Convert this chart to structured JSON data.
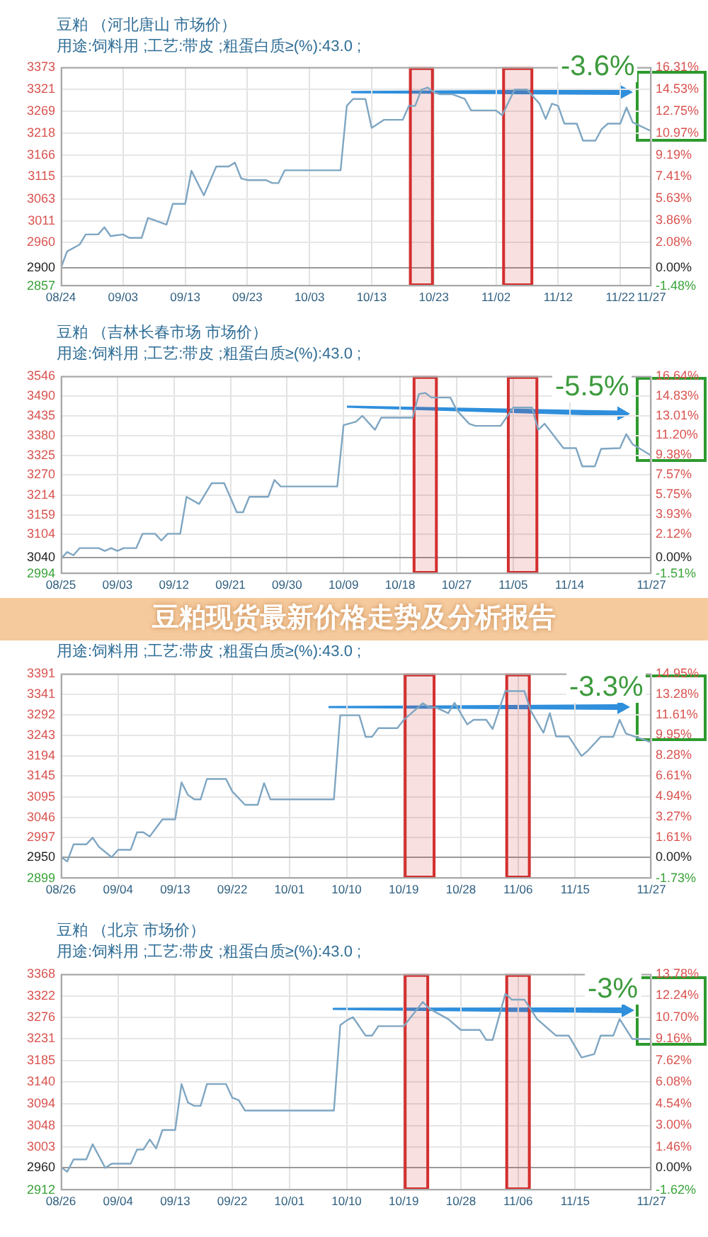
{
  "chart_data": [
    {
      "type": "line",
      "title": "豆粕 （河北唐山 市场价）",
      "subtitle": "用途:饲料用 ;工艺:带皮 ;粗蛋白质≥(%):43.0 ;",
      "color": "#7fa6c2",
      "grid": true,
      "annotations": [
        "-3.6%"
      ],
      "bands": [
        {
          "axis": "x",
          "from": "--10-19",
          "to": "--10-23",
          "color": "#d32f2f"
        },
        {
          "axis": "x",
          "from": "--11-03",
          "to": "--11-08",
          "color": "#d32f2f"
        }
      ],
      "x": [
        "--08-24",
        "--08-25",
        "--08-27",
        "--08-28",
        "--08-30",
        "--08-31",
        "--09-01",
        "--09-03",
        "--09-04",
        "--09-06",
        "--09-07",
        "--09-08",
        "--09-10",
        "--09-11",
        "--09-13",
        "--09-14",
        "--09-16",
        "--09-18",
        "--09-20",
        "--09-21",
        "--09-22",
        "--09-23",
        "--09-26",
        "--09-27",
        "--09-28",
        "--09-29",
        "--10-08",
        "--10-09",
        "--10-10",
        "--10-12",
        "--10-13",
        "--10-15",
        "--10-18",
        "--10-19",
        "--10-20",
        "--10-21",
        "--10-22",
        "--10-23",
        "--10-24",
        "--10-26",
        "--10-28",
        "--10-29",
        "--11-02",
        "--11-03",
        "--11-05",
        "--11-07",
        "--11-09",
        "--11-10",
        "--11-11",
        "--11-12",
        "--11-13",
        "--11-15",
        "--11-16",
        "--11-18",
        "--11-19",
        "--11-20",
        "--11-22",
        "--11-23",
        "--11-24",
        "--11-27"
      ],
      "values": [
        2900,
        2939,
        2955,
        2979,
        2979,
        2996,
        2975,
        2979,
        2971,
        2971,
        3018,
        3013,
        3002,
        3051,
        3051,
        3129,
        3071,
        3139,
        3139,
        3148,
        3111,
        3107,
        3107,
        3100,
        3100,
        3130,
        3130,
        3282,
        3298,
        3298,
        3230,
        3249,
        3249,
        3282,
        3282,
        3320,
        3325,
        3314,
        3309,
        3309,
        3298,
        3271,
        3271,
        3260,
        3320,
        3320,
        3287,
        3251,
        3287,
        3282,
        3240,
        3240,
        3200,
        3200,
        3227,
        3240,
        3240,
        3278,
        3243,
        3222
      ],
      "xlim": [
        "--08-24",
        "--11-27"
      ],
      "xticks": [
        {
          "value": "--08-24",
          "label": "08/24"
        },
        {
          "value": "--09-03",
          "label": "09/03"
        },
        {
          "value": "--09-13",
          "label": "09/13"
        },
        {
          "value": "--09-23",
          "label": "09/23"
        },
        {
          "value": "--10-03",
          "label": "10/03"
        },
        {
          "value": "--10-13",
          "label": "10/13"
        },
        {
          "value": "--10-23",
          "label": "10/23"
        },
        {
          "value": "--11-02",
          "label": "11/02"
        },
        {
          "value": "--11-12",
          "label": "11/12"
        },
        {
          "value": "--11-22",
          "label": "11/22"
        },
        {
          "value": "--11-27",
          "label": "11/27"
        }
      ],
      "ylim": [
        2857,
        3373
      ],
      "yticks": [
        2857,
        2900,
        2960,
        3011,
        3063,
        3115,
        3166,
        3218,
        3269,
        3321,
        3373
      ],
      "y2lim": [
        -1.48,
        16.31
      ],
      "y2ticks": [
        {
          "value": -1.48,
          "label": "-1.48%"
        },
        {
          "value": 0,
          "label": "0.00%"
        },
        {
          "value": 2.08,
          "label": "2.08%"
        },
        {
          "value": 3.86,
          "label": "3.86%"
        },
        {
          "value": 5.63,
          "label": "5.63%"
        },
        {
          "value": 7.41,
          "label": "7.41%"
        },
        {
          "value": 9.19,
          "label": "9.19%"
        },
        {
          "value": 10.97,
          "label": "10.97%"
        },
        {
          "value": 12.75,
          "label": "12.75%"
        },
        {
          "value": 14.53,
          "label": "14.53%"
        },
        {
          "value": 16.31,
          "label": "16.31%"
        }
      ]
    },
    {
      "type": "line",
      "title": "豆粕 （吉林长春市场 市场价）",
      "subtitle": "用途:饲料用 ;工艺:带皮 ;粗蛋白质≥(%):43.0 ;",
      "color": "#7fa6c2",
      "grid": true,
      "annotations": [
        "-5.5%"
      ],
      "bands": [
        {
          "axis": "x",
          "from": "--10-20",
          "to": "--10-24",
          "color": "#d32f2f"
        },
        {
          "axis": "x",
          "from": "--11-04",
          "to": "--11-09",
          "color": "#d32f2f"
        }
      ],
      "x": [
        "--08-25",
        "--08-26",
        "--08-27",
        "--08-28",
        "--08-31",
        "--09-01",
        "--09-02",
        "--09-03",
        "--09-04",
        "--09-06",
        "--09-07",
        "--09-09",
        "--09-10",
        "--09-11",
        "--09-13",
        "--09-14",
        "--09-16",
        "--09-18",
        "--09-20",
        "--09-22",
        "--09-23",
        "--09-24",
        "--09-27",
        "--09-28",
        "--09-29",
        "--10-08",
        "--10-09",
        "--10-11",
        "--10-12",
        "--10-14",
        "--10-15",
        "--10-20",
        "--10-21",
        "--10-22",
        "--10-23",
        "--10-26",
        "--10-27",
        "--10-29",
        "--10-30",
        "--11-03",
        "--11-05",
        "--11-08",
        "--11-09",
        "--11-10",
        "--11-13",
        "--11-15",
        "--11-16",
        "--11-18",
        "--11-19",
        "--11-22",
        "--11-23",
        "--11-24",
        "--11-27"
      ],
      "values": [
        3036,
        3055,
        3046,
        3066,
        3066,
        3058,
        3066,
        3058,
        3066,
        3066,
        3106,
        3106,
        3087,
        3106,
        3106,
        3209,
        3189,
        3247,
        3247,
        3166,
        3166,
        3209,
        3209,
        3256,
        3238,
        3238,
        3409,
        3419,
        3435,
        3396,
        3430,
        3430,
        3496,
        3499,
        3486,
        3486,
        3451,
        3413,
        3407,
        3407,
        3458,
        3458,
        3396,
        3413,
        3345,
        3345,
        3294,
        3294,
        3343,
        3345,
        3384,
        3356,
        3324
      ],
      "xlim": [
        "--08-25",
        "--11-27"
      ],
      "xticks": [
        {
          "value": "--08-25",
          "label": "08/25"
        },
        {
          "value": "--09-03",
          "label": "09/03"
        },
        {
          "value": "--09-12",
          "label": "09/12"
        },
        {
          "value": "--09-21",
          "label": "09/21"
        },
        {
          "value": "--09-30",
          "label": "09/30"
        },
        {
          "value": "--10-09",
          "label": "10/09"
        },
        {
          "value": "--10-18",
          "label": "10/18"
        },
        {
          "value": "--10-27",
          "label": "10/27"
        },
        {
          "value": "--11-05",
          "label": "11/05"
        },
        {
          "value": "--11-14",
          "label": "11/14"
        },
        {
          "value": "--11-27",
          "label": "11/27"
        }
      ],
      "ylim": [
        2994,
        3546
      ],
      "yticks": [
        2994,
        3040,
        3104,
        3159,
        3214,
        3270,
        3325,
        3380,
        3435,
        3490,
        3546
      ],
      "y2lim": [
        -1.51,
        16.64
      ],
      "y2ticks": [
        {
          "value": -1.51,
          "label": "-1.51%"
        },
        {
          "value": 0,
          "label": "0.00%"
        },
        {
          "value": 2.12,
          "label": "2.12%"
        },
        {
          "value": 3.93,
          "label": "3.93%"
        },
        {
          "value": 5.75,
          "label": "5.75%"
        },
        {
          "value": 7.57,
          "label": "7.57%"
        },
        {
          "value": 9.38,
          "label": "9.38%"
        },
        {
          "value": 11.2,
          "label": "11.20%"
        },
        {
          "value": 13.01,
          "label": "13.01%"
        },
        {
          "value": 14.83,
          "label": "14.83%"
        },
        {
          "value": 16.64,
          "label": "16.64%"
        }
      ]
    },
    {
      "type": "line",
      "title": "豆粕现货最新价格走势及分析报告",
      "subtitle": "用途:饲料用 ;工艺:带皮 ;粗蛋白质≥(%):43.0 ;",
      "color": "#7fa6c2",
      "grid": true,
      "annotations": [
        "-3.3%"
      ],
      "bands": [
        {
          "axis": "x",
          "from": "--10-19",
          "to": "--10-24",
          "color": "#d32f2f"
        },
        {
          "axis": "x",
          "from": "--11-04",
          "to": "--11-08",
          "color": "#d32f2f"
        }
      ],
      "x": [
        "--08-26",
        "--08-27",
        "--08-28",
        "--08-30",
        "--08-31",
        "--09-01",
        "--09-03",
        "--09-04",
        "--09-06",
        "--09-07",
        "--09-08",
        "--09-09",
        "--09-11",
        "--09-13",
        "--09-14",
        "--09-15",
        "--09-16",
        "--09-17",
        "--09-18",
        "--09-21",
        "--09-22",
        "--09-24",
        "--09-26",
        "--09-27",
        "--09-28",
        "--10-08",
        "--10-09",
        "--10-12",
        "--10-13",
        "--10-14",
        "--10-15",
        "--10-18",
        "--10-19",
        "--10-22",
        "--10-23",
        "--10-24",
        "--10-26",
        "--10-27",
        "--10-29",
        "--10-30",
        "--11-01",
        "--11-02",
        "--11-04",
        "--11-07",
        "--11-08",
        "--11-10",
        "--11-11",
        "--11-12",
        "--11-14",
        "--11-16",
        "--11-17",
        "--11-19",
        "--11-21",
        "--11-22",
        "--11-23",
        "--11-27"
      ],
      "values": [
        2951,
        2940,
        2981,
        2981,
        2997,
        2975,
        2950,
        2968,
        2968,
        3010,
        3010,
        3000,
        3041,
        3041,
        3130,
        3100,
        3089,
        3089,
        3138,
        3138,
        3108,
        3076,
        3076,
        3128,
        3089,
        3089,
        3291,
        3291,
        3239,
        3239,
        3260,
        3260,
        3280,
        3320,
        3310,
        3310,
        3296,
        3321,
        3269,
        3280,
        3280,
        3258,
        3349,
        3349,
        3302,
        3249,
        3296,
        3240,
        3240,
        3193,
        3206,
        3239,
        3239,
        3280,
        3247,
        3226
      ],
      "xlim": [
        "--08-26",
        "--11-27"
      ],
      "xticks": [
        {
          "value": "--08-26",
          "label": "08/26"
        },
        {
          "value": "--09-04",
          "label": "09/04"
        },
        {
          "value": "--09-13",
          "label": "09/13"
        },
        {
          "value": "--09-22",
          "label": "09/22"
        },
        {
          "value": "--10-01",
          "label": "10/01"
        },
        {
          "value": "--10-10",
          "label": "10/10"
        },
        {
          "value": "--10-19",
          "label": "10/19"
        },
        {
          "value": "--10-28",
          "label": "10/28"
        },
        {
          "value": "--11-06",
          "label": "11/06"
        },
        {
          "value": "--11-15",
          "label": "11/15"
        },
        {
          "value": "--11-27",
          "label": "11/27"
        }
      ],
      "ylim": [
        2899,
        3391
      ],
      "yticks": [
        2899,
        2950,
        2997,
        3046,
        3095,
        3145,
        3194,
        3243,
        3292,
        3341,
        3391
      ],
      "y2lim": [
        -1.73,
        14.95
      ],
      "y2ticks": [
        {
          "value": -1.73,
          "label": "-1.73%"
        },
        {
          "value": 0,
          "label": "0.00%"
        },
        {
          "value": 1.61,
          "label": "1.61%"
        },
        {
          "value": 3.27,
          "label": "3.27%"
        },
        {
          "value": 4.94,
          "label": "4.94%"
        },
        {
          "value": 6.61,
          "label": "6.61%"
        },
        {
          "value": 8.28,
          "label": "8.28%"
        },
        {
          "value": 9.95,
          "label": "9.95%"
        },
        {
          "value": 11.61,
          "label": "11.61%"
        },
        {
          "value": 13.28,
          "label": "13.28%"
        },
        {
          "value": 14.95,
          "label": "14.95%"
        }
      ]
    },
    {
      "type": "line",
      "title": "豆粕 （北京 市场价）",
      "subtitle": "用途:饲料用 ;工艺:带皮 ;粗蛋白质≥(%):43.0 ;",
      "color": "#7fa6c2",
      "grid": true,
      "annotations": [
        "-3%"
      ],
      "bands": [
        {
          "axis": "x",
          "from": "--10-19",
          "to": "--10-23",
          "color": "#d32f2f"
        },
        {
          "axis": "x",
          "from": "--11-04",
          "to": "--11-08",
          "color": "#d32f2f"
        }
      ],
      "x": [
        "--08-26",
        "--08-27",
        "--08-28",
        "--08-30",
        "--08-31",
        "--09-02",
        "--09-03",
        "--09-06",
        "--09-07",
        "--09-08",
        "--09-09",
        "--09-10",
        "--09-11",
        "--09-13",
        "--09-14",
        "--09-15",
        "--09-16",
        "--09-17",
        "--09-18",
        "--09-21",
        "--09-22",
        "--09-23",
        "--09-24",
        "--10-08",
        "--10-09",
        "--10-10",
        "--10-11",
        "--10-13",
        "--10-14",
        "--10-15",
        "--10-19",
        "--10-22",
        "--10-23",
        "--10-26",
        "--10-28",
        "--10-31",
        "--11-01",
        "--11-02",
        "--11-04",
        "--11-05",
        "--11-07",
        "--11-09",
        "--11-12",
        "--11-14",
        "--11-16",
        "--11-18",
        "--11-19",
        "--11-21",
        "--11-22",
        "--11-24",
        "--11-27"
      ],
      "values": [
        2961,
        2951,
        2977,
        2977,
        3009,
        2959,
        2968,
        2968,
        2998,
        2998,
        3019,
        3000,
        3039,
        3039,
        3136,
        3097,
        3090,
        3090,
        3136,
        3136,
        3107,
        3102,
        3080,
        3080,
        3260,
        3270,
        3277,
        3238,
        3238,
        3258,
        3258,
        3309,
        3295,
        3273,
        3250,
        3250,
        3229,
        3229,
        3326,
        3314,
        3314,
        3273,
        3238,
        3238,
        3192,
        3199,
        3238,
        3238,
        3273,
        3231,
        3231
      ],
      "xlim": [
        "--08-26",
        "--11-27"
      ],
      "xticks": [
        {
          "value": "--08-26",
          "label": "08/26"
        },
        {
          "value": "--09-04",
          "label": "09/04"
        },
        {
          "value": "--09-13",
          "label": "09/13"
        },
        {
          "value": "--09-22",
          "label": "09/22"
        },
        {
          "value": "--10-01",
          "label": "10/01"
        },
        {
          "value": "--10-10",
          "label": "10/10"
        },
        {
          "value": "--10-19",
          "label": "10/19"
        },
        {
          "value": "--10-28",
          "label": "10/28"
        },
        {
          "value": "--11-06",
          "label": "11/06"
        },
        {
          "value": "--11-15",
          "label": "11/15"
        },
        {
          "value": "--11-27",
          "label": "11/27"
        }
      ],
      "ylim": [
        2912,
        3368
      ],
      "yticks": [
        2912,
        2960,
        3003,
        3048,
        3094,
        3140,
        3185,
        3231,
        3276,
        3322,
        3368
      ],
      "y2lim": [
        -1.62,
        13.78
      ],
      "y2ticks": [
        {
          "value": -1.62,
          "label": "-1.62%"
        },
        {
          "value": 0,
          "label": "0.00%"
        },
        {
          "value": 1.46,
          "label": "1.46%"
        },
        {
          "value": 3,
          "label": "3.00%"
        },
        {
          "value": 4.54,
          "label": "4.54%"
        },
        {
          "value": 6.08,
          "label": "6.08%"
        },
        {
          "value": 7.62,
          "label": "7.62%"
        },
        {
          "value": 9.16,
          "label": "9.16%"
        },
        {
          "value": 10.7,
          "label": "10.70%"
        },
        {
          "value": 12.24,
          "label": "12.24%"
        },
        {
          "value": 13.78,
          "label": "13.78%"
        }
      ]
    }
  ]
}
